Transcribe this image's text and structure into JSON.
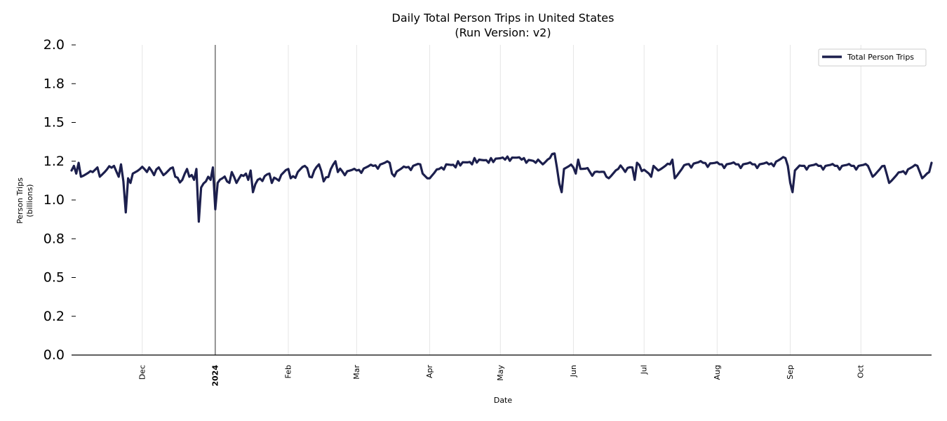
{
  "chart_data": {
    "type": "line",
    "title": "Daily Total Person Trips in United States",
    "subtitle": "(Run Version: v2)",
    "xlabel": "Date",
    "ylabel": "Person Trips",
    "ylabel_unit": "(billions)",
    "ylim": [
      0,
      2.0
    ],
    "yticks": [
      0.0,
      0.25,
      0.5,
      0.75,
      1.0,
      1.25,
      1.5,
      1.75,
      2.0
    ],
    "ytick_labels": [
      "0.0",
      "0.2",
      "0.5",
      "0.8",
      "1.0",
      "1.2",
      "1.5",
      "1.8",
      "2.0"
    ],
    "x_start": "2023-11-01",
    "x_end": "2024-10-31",
    "xticks": [
      {
        "date": "2023-12-01",
        "label": "Dec",
        "bold": false
      },
      {
        "date": "2024-01-01",
        "label": "2024",
        "bold": true
      },
      {
        "date": "2024-02-01",
        "label": "Feb",
        "bold": false
      },
      {
        "date": "2024-03-01",
        "label": "Mar",
        "bold": false
      },
      {
        "date": "2024-04-01",
        "label": "Apr",
        "bold": false
      },
      {
        "date": "2024-05-01",
        "label": "May",
        "bold": false
      },
      {
        "date": "2024-06-01",
        "label": "Jun",
        "bold": false
      },
      {
        "date": "2024-07-01",
        "label": "Jul",
        "bold": false
      },
      {
        "date": "2024-08-01",
        "label": "Aug",
        "bold": false
      },
      {
        "date": "2024-09-01",
        "label": "Sep",
        "bold": false
      },
      {
        "date": "2024-10-01",
        "label": "Oct",
        "bold": false
      }
    ],
    "vline_date": "2024-01-01",
    "grid": "x",
    "legend": {
      "position": "top-right",
      "entries": [
        "Total Person Trips"
      ]
    },
    "series": [
      {
        "name": "Total Person Trips",
        "color": "#1c1f4d",
        "anchors": [
          [
            "2023-11-01",
            1.19
          ],
          [
            "2023-11-02",
            1.22
          ],
          [
            "2023-11-03",
            1.17
          ],
          [
            "2023-11-04",
            1.24
          ],
          [
            "2023-11-05",
            1.15
          ],
          [
            "2023-11-10",
            1.18
          ],
          [
            "2023-11-12",
            1.21
          ],
          [
            "2023-11-13",
            1.15
          ],
          [
            "2023-11-19",
            1.22
          ],
          [
            "2023-11-21",
            1.15
          ],
          [
            "2023-11-22",
            1.23
          ],
          [
            "2023-11-23",
            1.12
          ],
          [
            "2023-11-24",
            0.92
          ],
          [
            "2023-11-25",
            1.14
          ],
          [
            "2023-11-26",
            1.11
          ],
          [
            "2023-11-27",
            1.17
          ],
          [
            "2023-12-04",
            1.21
          ],
          [
            "2023-12-06",
            1.16
          ],
          [
            "2023-12-08",
            1.21
          ],
          [
            "2023-12-10",
            1.16
          ],
          [
            "2023-12-14",
            1.21
          ],
          [
            "2023-12-15",
            1.15
          ],
          [
            "2023-12-18",
            1.13
          ],
          [
            "2023-12-20",
            1.2
          ],
          [
            "2023-12-21",
            1.15
          ],
          [
            "2023-12-23",
            1.13
          ],
          [
            "2023-12-24",
            1.2
          ],
          [
            "2023-12-25",
            0.86
          ],
          [
            "2023-12-26",
            1.08
          ],
          [
            "2023-12-28",
            1.12
          ],
          [
            "2023-12-29",
            1.15
          ],
          [
            "2023-12-30",
            1.13
          ],
          [
            "2023-12-31",
            1.21
          ],
          [
            "2024-01-01",
            0.94
          ],
          [
            "2024-01-02",
            1.11
          ],
          [
            "2024-01-04",
            1.14
          ],
          [
            "2024-01-07",
            1.11
          ],
          [
            "2024-01-08",
            1.18
          ],
          [
            "2024-01-10",
            1.11
          ],
          [
            "2024-01-14",
            1.17
          ],
          [
            "2024-01-15",
            1.13
          ],
          [
            "2024-01-16",
            1.19
          ],
          [
            "2024-01-17",
            1.05
          ],
          [
            "2024-01-19",
            1.13
          ],
          [
            "2024-01-24",
            1.17
          ],
          [
            "2024-01-25",
            1.11
          ],
          [
            "2024-02-01",
            1.2
          ],
          [
            "2024-02-02",
            1.14
          ],
          [
            "2024-02-08",
            1.22
          ],
          [
            "2024-02-10",
            1.15
          ],
          [
            "2024-02-14",
            1.23
          ],
          [
            "2024-02-16",
            1.12
          ],
          [
            "2024-02-21",
            1.25
          ],
          [
            "2024-02-22",
            1.18
          ],
          [
            "2024-03-01",
            1.19
          ],
          [
            "2024-03-08",
            1.22
          ],
          [
            "2024-03-15",
            1.24
          ],
          [
            "2024-03-16",
            1.17
          ],
          [
            "2024-03-22",
            1.21
          ],
          [
            "2024-03-28",
            1.23
          ],
          [
            "2024-03-29",
            1.17
          ],
          [
            "2024-03-31",
            1.14
          ],
          [
            "2024-04-01",
            1.14
          ],
          [
            "2024-04-05",
            1.2
          ],
          [
            "2024-04-08",
            1.23
          ],
          [
            "2024-04-12",
            1.21
          ],
          [
            "2024-04-13",
            1.25
          ],
          [
            "2024-04-19",
            1.23
          ],
          [
            "2024-04-20",
            1.27
          ],
          [
            "2024-04-26",
            1.24
          ],
          [
            "2024-04-27",
            1.27
          ],
          [
            "2024-05-03",
            1.26
          ],
          [
            "2024-05-04",
            1.28
          ],
          [
            "2024-05-10",
            1.26
          ],
          [
            "2024-05-11",
            1.27
          ],
          [
            "2024-05-16",
            1.24
          ],
          [
            "2024-05-17",
            1.26
          ],
          [
            "2024-05-19",
            1.23
          ],
          [
            "2024-05-22",
            1.27
          ],
          [
            "2024-05-24",
            1.3
          ],
          [
            "2024-05-25",
            1.21
          ],
          [
            "2024-05-27",
            1.05
          ],
          [
            "2024-05-28",
            1.2
          ],
          [
            "2024-06-01",
            1.21
          ],
          [
            "2024-06-02",
            1.17
          ],
          [
            "2024-06-03",
            1.26
          ],
          [
            "2024-06-04",
            1.2
          ],
          [
            "2024-06-08",
            1.18
          ],
          [
            "2024-06-12",
            1.18
          ],
          [
            "2024-06-16",
            1.14
          ],
          [
            "2024-06-20",
            1.2
          ],
          [
            "2024-06-26",
            1.21
          ],
          [
            "2024-06-27",
            1.13
          ],
          [
            "2024-06-28",
            1.24
          ],
          [
            "2024-07-04",
            1.15
          ],
          [
            "2024-07-05",
            1.22
          ],
          [
            "2024-07-07",
            1.19
          ],
          [
            "2024-07-12",
            1.23
          ],
          [
            "2024-07-13",
            1.26
          ],
          [
            "2024-07-14",
            1.14
          ],
          [
            "2024-07-19",
            1.23
          ],
          [
            "2024-07-26",
            1.24
          ],
          [
            "2024-08-02",
            1.23
          ],
          [
            "2024-08-09",
            1.23
          ],
          [
            "2024-08-16",
            1.23
          ],
          [
            "2024-08-23",
            1.23
          ],
          [
            "2024-08-30",
            1.27
          ],
          [
            "2024-08-31",
            1.22
          ],
          [
            "2024-09-02",
            1.05
          ],
          [
            "2024-09-03",
            1.19
          ],
          [
            "2024-09-06",
            1.22
          ],
          [
            "2024-09-13",
            1.22
          ],
          [
            "2024-09-20",
            1.22
          ],
          [
            "2024-09-27",
            1.22
          ],
          [
            "2024-10-04",
            1.22
          ],
          [
            "2024-10-06",
            1.15
          ],
          [
            "2024-10-11",
            1.22
          ],
          [
            "2024-10-13",
            1.11
          ],
          [
            "2024-10-18",
            1.18
          ],
          [
            "2024-10-25",
            1.22
          ],
          [
            "2024-10-27",
            1.14
          ],
          [
            "2024-10-30",
            1.18
          ],
          [
            "2024-10-31",
            1.24
          ]
        ]
      }
    ]
  }
}
